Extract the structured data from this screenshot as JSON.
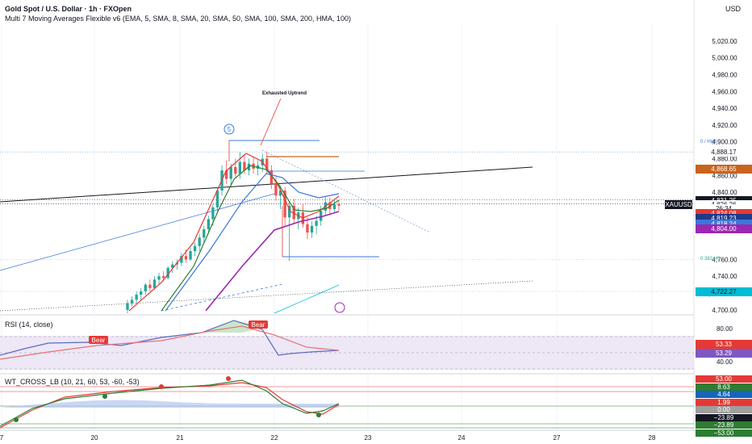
{
  "header": {
    "symbol": "Gold Spot / U.S. Dollar · 1h · FXOpen",
    "indicator": "Multi 7 Moving Averages Flexible v6 (EMA, 5, SMA, 8, SMA, 20, SMA, 50, SMA, 100, SMA, 200, HMA, 100)",
    "currency": "USD"
  },
  "chart_data": {
    "type": "candlestick",
    "price_axis": {
      "ticks": [
        "5,020.00",
        "5,000.00",
        "4,980.00",
        "4,960.00",
        "4,940.00",
        "4,920.00",
        "4,900.00",
        "4,880.00",
        "4,860.00",
        "4,840.00",
        "4,760.00",
        "4,740.00",
        "4,700.00"
      ],
      "min": 4696,
      "max": 5040
    },
    "time_axis": {
      "ticks": [
        "7",
        "20",
        "21",
        "22",
        "23",
        "24",
        "27",
        "28"
      ]
    },
    "candles": [
      [
        4700,
        4712,
        4696,
        4708
      ],
      [
        4708,
        4716,
        4704,
        4712
      ],
      [
        4712,
        4722,
        4708,
        4718
      ],
      [
        4718,
        4726,
        4712,
        4722
      ],
      [
        4722,
        4732,
        4718,
        4730
      ],
      [
        4730,
        4736,
        4722,
        4726
      ],
      [
        4726,
        4740,
        4724,
        4736
      ],
      [
        4736,
        4744,
        4730,
        4740
      ],
      [
        4740,
        4746,
        4734,
        4738
      ],
      [
        4738,
        4752,
        4736,
        4750
      ],
      [
        4750,
        4758,
        4744,
        4754
      ],
      [
        4754,
        4760,
        4748,
        4756
      ],
      [
        4756,
        4768,
        4752,
        4764
      ],
      [
        4764,
        4772,
        4756,
        4760
      ],
      [
        4760,
        4774,
        4758,
        4770
      ],
      [
        4770,
        4780,
        4764,
        4776
      ],
      [
        4776,
        4790,
        4770,
        4786
      ],
      [
        4786,
        4800,
        4780,
        4796
      ],
      [
        4796,
        4812,
        4790,
        4808
      ],
      [
        4808,
        4826,
        4800,
        4822
      ],
      [
        4822,
        4846,
        4816,
        4842
      ],
      [
        4842,
        4872,
        4836,
        4866
      ],
      [
        4866,
        4878,
        4850,
        4856
      ],
      [
        4856,
        4874,
        4848,
        4870
      ],
      [
        4870,
        4880,
        4858,
        4862
      ],
      [
        4862,
        4888,
        4856,
        4876
      ],
      [
        4876,
        4884,
        4862,
        4866
      ],
      [
        4866,
        4880,
        4860,
        4874
      ],
      [
        4874,
        4882,
        4862,
        4868
      ],
      [
        4868,
        4878,
        4860,
        4872
      ],
      [
        4872,
        4886,
        4864,
        4880
      ],
      [
        4880,
        4888,
        4862,
        4866
      ],
      [
        4866,
        4872,
        4844,
        4850
      ],
      [
        4850,
        4858,
        4830,
        4836
      ],
      [
        4836,
        4848,
        4820,
        4842
      ],
      [
        4842,
        4846,
        4800,
        4810
      ],
      [
        4810,
        4830,
        4758,
        4824
      ],
      [
        4824,
        4832,
        4802,
        4808
      ],
      [
        4808,
        4822,
        4796,
        4816
      ],
      [
        4816,
        4826,
        4798,
        4802
      ],
      [
        4802,
        4810,
        4784,
        4792
      ],
      [
        4792,
        4806,
        4786,
        4800
      ],
      [
        4800,
        4812,
        4790,
        4806
      ],
      [
        4806,
        4824,
        4800,
        4818
      ],
      [
        4818,
        4834,
        4812,
        4828
      ],
      [
        4828,
        4834,
        4814,
        4820
      ],
      [
        4820,
        4832,
        4816,
        4826
      ],
      [
        4826,
        4830,
        4818,
        4824
      ]
    ],
    "annotations": {
      "label": "Exhausted Uptrend",
      "wave": "5",
      "fib_high": "0 / High",
      "fib_382": "0.382 (4,",
      "fib_5": "0.5 (4,71"
    },
    "price_labels": [
      {
        "text": "4,888.17",
        "color": "#ffffff",
        "fg": "#131722",
        "price": 4888
      },
      {
        "text": "4,868.65",
        "color": "#c8641e",
        "fg": "#ffffff",
        "price": 4868
      },
      {
        "text": "4,831.25",
        "color": "#131722",
        "fg": "#ffffff",
        "price": 4831
      },
      {
        "text": "4,826.26",
        "color": "#ffffff",
        "fg": "#131722",
        "price": 4826
      },
      {
        "text": "26:34",
        "color": "#ffffff",
        "fg": "#131722",
        "price": 4821
      },
      {
        "text": "4,824.08",
        "color": "#e53935",
        "fg": "#ffffff",
        "price": 4815
      },
      {
        "text": "4,819.23",
        "color": "#1e3a8a",
        "fg": "#ffffff",
        "price": 4809
      },
      {
        "text": "4,818.24",
        "color": "#3c78d8",
        "fg": "#ffffff",
        "price": 4803
      },
      {
        "text": "4,804.00",
        "color": "#9c27b0",
        "fg": "#ffffff",
        "price": 4797
      },
      {
        "text": "4,722.27",
        "color": "#00bcd4",
        "fg": "#131722",
        "price": 4722
      }
    ],
    "ticker_tag": "XAUUSD",
    "rsi": {
      "title": "RSI (14, close)",
      "ticks": [
        "80.00",
        "40.00"
      ],
      "labels": [
        {
          "text": "53.33",
          "color": "#e53935"
        },
        {
          "text": "53.29",
          "color": "#7e57c2"
        }
      ],
      "bear_label": "Bear"
    },
    "wt": {
      "title": "WT_CROSS_LB (10, 21, 60, 53, -60, -53)",
      "labels": [
        {
          "text": "53.00",
          "color": "#e53935"
        },
        {
          "text": "8.63",
          "color": "#2e7d32"
        },
        {
          "text": "4.64",
          "color": "#1565c0"
        },
        {
          "text": "1.99",
          "color": "#e53935"
        },
        {
          "text": "0.00",
          "color": "#9e9e9e"
        },
        {
          "text": "−23.89",
          "color": "#131722"
        },
        {
          "text": "−23.89",
          "color": "#2e7d32"
        },
        {
          "text": "−53.00",
          "color": "#2e7d32"
        }
      ]
    }
  }
}
